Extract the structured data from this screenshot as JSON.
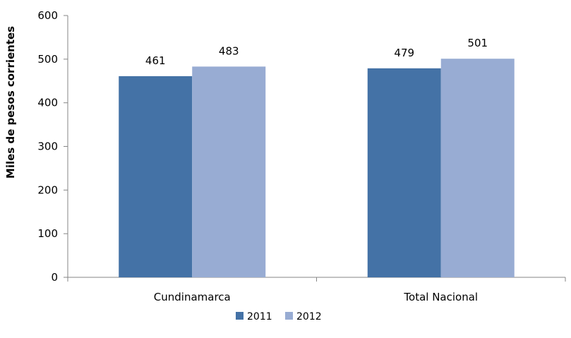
{
  "chart_data": {
    "type": "bar",
    "title": "",
    "xlabel": "",
    "ylabel": "Miles de pesos corrientes",
    "ylim": [
      0,
      600
    ],
    "yticks": [
      0,
      100,
      200,
      300,
      400,
      500,
      600
    ],
    "categories": [
      "Cundinamarca",
      "Total Nacional"
    ],
    "series": [
      {
        "name": "2011",
        "values": [
          461,
          479
        ],
        "color": "#4472A6"
      },
      {
        "name": "2012",
        "values": [
          483,
          501
        ],
        "color": "#98ACD3"
      }
    ],
    "grid": false,
    "legend_position": "bottom"
  }
}
